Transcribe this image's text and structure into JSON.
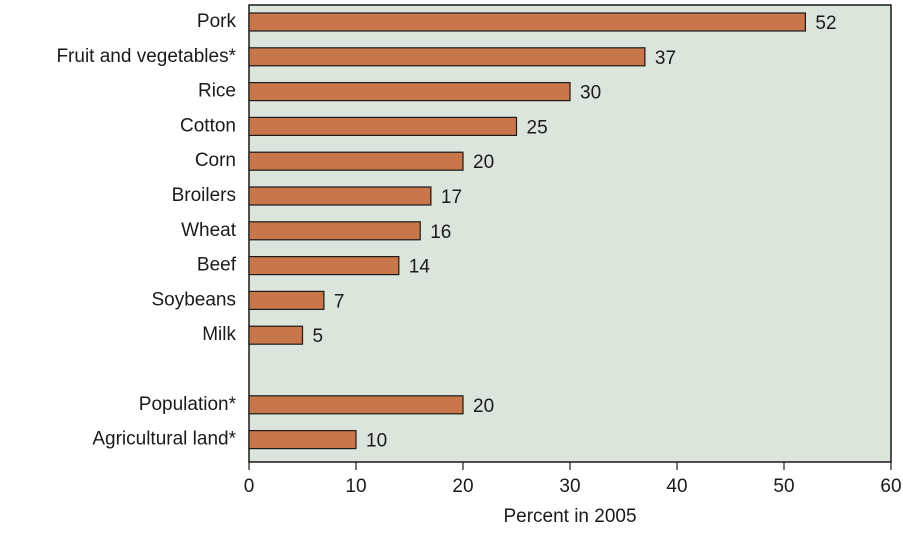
{
  "chart_data": {
    "type": "bar",
    "orientation": "horizontal",
    "categories": [
      "Pork",
      "Fruit and vegetables*",
      "Rice",
      "Cotton",
      "Corn",
      "Broilers",
      "Wheat",
      "Beef",
      "Soybeans",
      "Milk",
      "",
      "Population*",
      "Agricultural land*"
    ],
    "values": [
      52,
      37,
      30,
      25,
      20,
      17,
      16,
      14,
      7,
      5,
      null,
      20,
      10
    ],
    "value_labels": [
      "52",
      "37",
      "30",
      "25",
      "20",
      "17",
      "16",
      "14",
      "7",
      "5",
      "",
      "20",
      "10"
    ],
    "xlabel": "Percent in 2005",
    "ylabel": "",
    "xlim": [
      0,
      60
    ],
    "x_ticks": [
      0,
      10,
      20,
      30,
      40,
      50,
      60
    ],
    "grid": false,
    "colors": {
      "bar_fill": "#c8764a",
      "bar_stroke": "#1a1a1a",
      "plot_background": "#dce5dc"
    }
  }
}
